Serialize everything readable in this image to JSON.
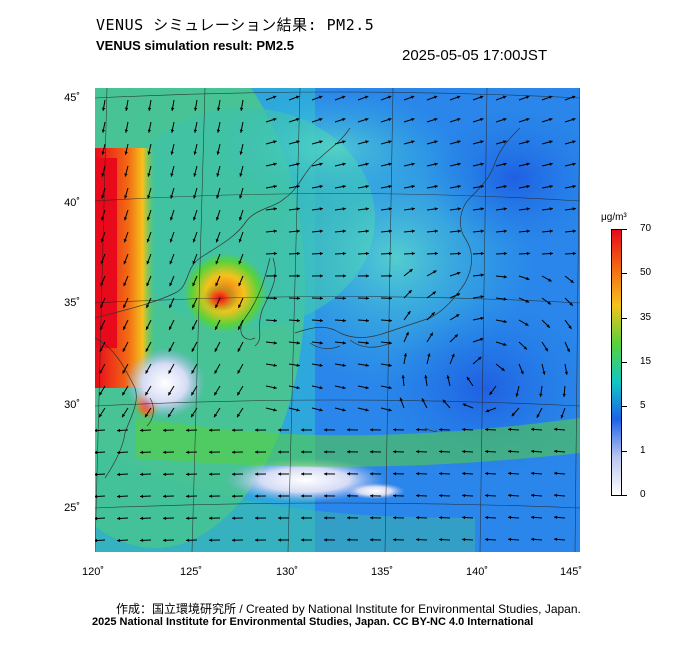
{
  "header": {
    "title_ja": "VENUS シミュレーション結果: PM2.5",
    "title_en": "VENUS simulation result: PM2.5",
    "timestamp": "2025-05-05 17:00JST"
  },
  "axes": {
    "lat_labels": [
      "45˚",
      "40˚",
      "35˚",
      "30˚",
      "25˚"
    ],
    "lon_labels": [
      "120˚",
      "125˚",
      "130˚",
      "135˚",
      "140˚",
      "145˚"
    ]
  },
  "colorbar": {
    "unit": "μg/m³",
    "labels": [
      "70",
      "50",
      "35",
      "15",
      "5",
      "1",
      "0"
    ],
    "colors": [
      "#e8091a",
      "#f26a14",
      "#f5c21c",
      "#58d23a",
      "#12c8c4",
      "#1c62e8",
      "#b9c6ef",
      "#ffffff"
    ]
  },
  "footer": {
    "credit_ja": "作成：国立環境研究所 / Created by National Institute for Environmental Studies, Japan.",
    "copyright": "2025 National Institute for Environmental Studies, Japan. CC BY-NC 4.0 International"
  }
}
